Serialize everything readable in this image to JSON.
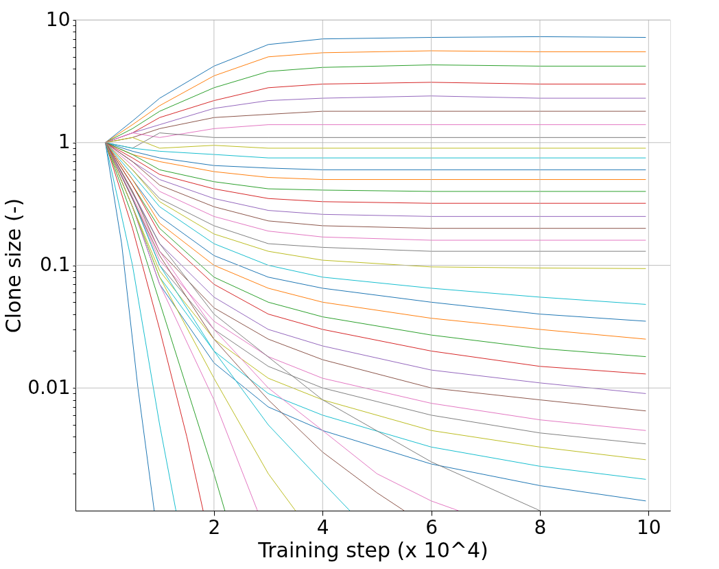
{
  "chart_data": {
    "type": "line",
    "xlabel": "Training step (x 10^4)",
    "ylabel": "Clone size (-)",
    "log": "y",
    "grid": true,
    "line_style": "solid",
    "marker": "none",
    "xlim": [
      -0.55,
      10.4
    ],
    "xticks": [
      2,
      4,
      6,
      8,
      10
    ],
    "ylim": [
      0.001,
      10
    ],
    "yticks": [
      {
        "value": 0.002,
        "label": null
      },
      {
        "value": 0.003,
        "label": null
      },
      {
        "value": 0.004,
        "label": null
      },
      {
        "value": 0.005,
        "label": null
      },
      {
        "value": 0.006,
        "label": null
      },
      {
        "value": 0.007,
        "label": null
      },
      {
        "value": 0.008,
        "label": null
      },
      {
        "value": 0.009,
        "label": null
      },
      0.01,
      {
        "value": 0.02,
        "label": null
      },
      {
        "value": 0.03,
        "label": null
      },
      {
        "value": 0.04,
        "label": null
      },
      {
        "value": 0.05,
        "label": null
      },
      {
        "value": 0.06,
        "label": null
      },
      {
        "value": 0.07,
        "label": null
      },
      {
        "value": 0.08,
        "label": null
      },
      {
        "value": 0.09,
        "label": null
      },
      0.1,
      {
        "value": 0.2,
        "label": null
      },
      {
        "value": 0.3,
        "label": null
      },
      {
        "value": 0.4,
        "label": null
      },
      {
        "value": 0.5,
        "label": null
      },
      {
        "value": 0.6,
        "label": null
      },
      {
        "value": 0.7,
        "label": null
      },
      {
        "value": 0.8,
        "label": null
      },
      {
        "value": 0.9,
        "label": null
      },
      1,
      {
        "value": 2,
        "label": null
      },
      {
        "value": 3,
        "label": null
      },
      {
        "value": 4,
        "label": null
      },
      {
        "value": 5,
        "label": null
      },
      {
        "value": 6,
        "label": null
      },
      {
        "value": 7,
        "label": null
      },
      {
        "value": 8,
        "label": null
      },
      {
        "value": 9,
        "label": null
      },
      10
    ],
    "x": [
      0,
      0.5,
      1,
      2,
      3,
      4,
      6,
      8,
      9.95
    ],
    "series": [
      {
        "color": "#1f77b4",
        "values": [
          1,
          1.5,
          2.3,
          4.2,
          6.3,
          7.0,
          7.2,
          7.3,
          7.2
        ]
      },
      {
        "color": "#ff7f0e",
        "values": [
          1,
          1.4,
          2.0,
          3.5,
          5.0,
          5.4,
          5.6,
          5.5,
          5.5
        ]
      },
      {
        "color": "#2ca02c",
        "values": [
          1,
          1.3,
          1.8,
          2.8,
          3.8,
          4.1,
          4.3,
          4.2,
          4.2
        ]
      },
      {
        "color": "#d62728",
        "values": [
          1,
          1.2,
          1.6,
          2.2,
          2.8,
          3.0,
          3.1,
          3.0,
          3.0
        ]
      },
      {
        "color": "#9467bd",
        "values": [
          1,
          1.2,
          1.4,
          1.9,
          2.2,
          2.3,
          2.4,
          2.3,
          2.3
        ]
      },
      {
        "color": "#8c564b",
        "values": [
          1,
          1.1,
          1.3,
          1.6,
          1.7,
          1.8,
          1.8,
          1.8,
          1.8
        ]
      },
      {
        "color": "#e377c2",
        "values": [
          1,
          1.2,
          1.1,
          1.3,
          1.4,
          1.4,
          1.4,
          1.4,
          1.4
        ]
      },
      {
        "color": "#7f7f7f",
        "values": [
          1,
          0.9,
          1.2,
          1.1,
          1.1,
          1.1,
          1.1,
          1.1,
          1.1
        ]
      },
      {
        "color": "#bcbd22",
        "values": [
          1,
          1.1,
          0.9,
          0.95,
          0.9,
          0.9,
          0.9,
          0.9,
          0.9
        ]
      },
      {
        "color": "#17becf",
        "values": [
          1,
          0.9,
          0.85,
          0.8,
          0.75,
          0.75,
          0.75,
          0.75,
          0.75
        ]
      },
      {
        "color": "#1f77b4",
        "values": [
          1,
          0.85,
          0.75,
          0.65,
          0.62,
          0.6,
          0.6,
          0.6,
          0.6
        ]
      },
      {
        "color": "#ff7f0e",
        "values": [
          1,
          0.8,
          0.7,
          0.58,
          0.52,
          0.5,
          0.5,
          0.5,
          0.5
        ]
      },
      {
        "color": "#2ca02c",
        "values": [
          1,
          0.8,
          0.6,
          0.48,
          0.42,
          0.41,
          0.4,
          0.4,
          0.4
        ]
      },
      {
        "color": "#d62728",
        "values": [
          1,
          0.75,
          0.55,
          0.42,
          0.35,
          0.33,
          0.32,
          0.32,
          0.32
        ]
      },
      {
        "color": "#9467bd",
        "values": [
          1,
          0.7,
          0.5,
          0.35,
          0.28,
          0.26,
          0.25,
          0.25,
          0.25
        ]
      },
      {
        "color": "#8c564b",
        "values": [
          1,
          0.7,
          0.45,
          0.3,
          0.23,
          0.21,
          0.2,
          0.2,
          0.2
        ]
      },
      {
        "color": "#e377c2",
        "values": [
          1,
          0.65,
          0.4,
          0.25,
          0.19,
          0.17,
          0.16,
          0.16,
          0.16
        ]
      },
      {
        "color": "#7f7f7f",
        "values": [
          1,
          0.6,
          0.35,
          0.21,
          0.15,
          0.14,
          0.13,
          0.13,
          0.13
        ]
      },
      {
        "color": "#bcbd22",
        "values": [
          1,
          0.6,
          0.33,
          0.18,
          0.13,
          0.11,
          0.097,
          0.095,
          0.094
        ]
      },
      {
        "color": "#17becf",
        "values": [
          1,
          0.55,
          0.3,
          0.15,
          0.1,
          0.08,
          0.065,
          0.055,
          0.048
        ]
      },
      {
        "color": "#1f77b4",
        "values": [
          1,
          0.5,
          0.25,
          0.12,
          0.08,
          0.065,
          0.05,
          0.04,
          0.035
        ]
      },
      {
        "color": "#ff7f0e",
        "values": [
          1,
          0.5,
          0.22,
          0.1,
          0.065,
          0.05,
          0.037,
          0.03,
          0.025
        ]
      },
      {
        "color": "#2ca02c",
        "values": [
          1,
          0.45,
          0.2,
          0.08,
          0.05,
          0.038,
          0.027,
          0.021,
          0.018
        ]
      },
      {
        "color": "#d62728",
        "values": [
          1,
          0.45,
          0.18,
          0.07,
          0.04,
          0.03,
          0.02,
          0.015,
          0.013
        ]
      },
      {
        "color": "#9467bd",
        "values": [
          1,
          0.4,
          0.15,
          0.055,
          0.03,
          0.022,
          0.014,
          0.011,
          0.009
        ]
      },
      {
        "color": "#8c564b",
        "values": [
          1,
          0.4,
          0.13,
          0.045,
          0.025,
          0.017,
          0.01,
          0.008,
          0.0065
        ]
      },
      {
        "color": "#e377c2",
        "values": [
          1,
          0.35,
          0.11,
          0.035,
          0.018,
          0.012,
          0.0075,
          0.0055,
          0.0045
        ]
      },
      {
        "color": "#7f7f7f",
        "values": [
          1,
          0.35,
          0.1,
          0.03,
          0.015,
          0.01,
          0.006,
          0.0043,
          0.0035
        ]
      },
      {
        "color": "#bcbd22",
        "values": [
          1,
          0.3,
          0.09,
          0.025,
          0.012,
          0.008,
          0.0045,
          0.0033,
          0.0026
        ]
      },
      {
        "color": "#17becf",
        "values": [
          1,
          0.3,
          0.08,
          0.02,
          0.009,
          0.006,
          0.0033,
          0.0023,
          0.0018
        ]
      },
      {
        "color": "#1f77b4",
        "values": [
          1,
          0.3,
          0.07,
          0.016,
          0.007,
          0.0045,
          0.0024,
          0.0016,
          0.0012
        ]
      },
      {
        "color": "#1f77b4",
        "x": [
          0,
          0.3,
          0.6,
          0.9
        ],
        "values": [
          1,
          0.15,
          0.01,
          0.001
        ]
      },
      {
        "color": "#17becf",
        "x": [
          0,
          0.5,
          1,
          1.3
        ],
        "values": [
          1,
          0.1,
          0.005,
          0.001
        ]
      },
      {
        "color": "#d62728",
        "x": [
          0,
          0.5,
          1,
          1.5,
          1.8
        ],
        "values": [
          1,
          0.2,
          0.03,
          0.004,
          0.001
        ]
      },
      {
        "color": "#2ca02c",
        "x": [
          0,
          0.5,
          1,
          2,
          2.2
        ],
        "values": [
          1,
          0.25,
          0.05,
          0.002,
          0.001
        ]
      },
      {
        "color": "#e377c2",
        "x": [
          0,
          0.5,
          1,
          2,
          2.8
        ],
        "values": [
          1,
          0.3,
          0.07,
          0.008,
          0.001
        ]
      },
      {
        "color": "#bcbd22",
        "x": [
          0,
          0.5,
          1,
          2,
          3,
          3.5
        ],
        "values": [
          1,
          0.3,
          0.08,
          0.012,
          0.002,
          0.001
        ]
      },
      {
        "color": "#17becf",
        "x": [
          0,
          0.5,
          1,
          2,
          3,
          4,
          4.5
        ],
        "values": [
          1,
          0.35,
          0.1,
          0.02,
          0.005,
          0.0017,
          0.001
        ]
      },
      {
        "color": "#8c564b",
        "x": [
          0,
          1,
          2,
          3,
          4,
          5,
          5.5
        ],
        "values": [
          1,
          0.12,
          0.025,
          0.008,
          0.003,
          0.0014,
          0.001
        ]
      },
      {
        "color": "#e377c2",
        "x": [
          0,
          1,
          2,
          3,
          4,
          5,
          6,
          6.5
        ],
        "values": [
          1,
          0.13,
          0.03,
          0.01,
          0.0045,
          0.002,
          0.0012,
          0.001
        ]
      },
      {
        "color": "#7f7f7f",
        "x": [
          0,
          1,
          2,
          4,
          6,
          8
        ],
        "values": [
          1,
          0.15,
          0.04,
          0.008,
          0.0025,
          0.001
        ]
      }
    ]
  }
}
